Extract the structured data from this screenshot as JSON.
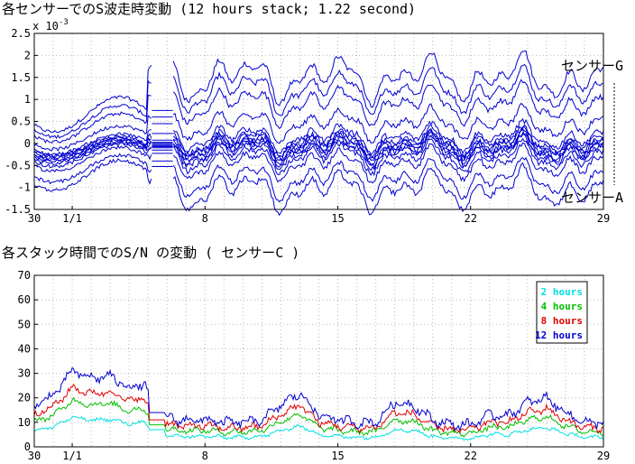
{
  "chart_data": [
    {
      "type": "line",
      "title": "各センサーでのS波走時変動 (12 hours stack; 1.22 second)",
      "y_exponent_label": "x 10",
      "y_exponent_power": "-3",
      "ylim": [
        -1.5,
        2.5
      ],
      "yticks": [
        -1.5,
        -1,
        -0.5,
        0,
        0.5,
        1,
        1.5,
        2,
        2.5
      ],
      "ytick_labels": [
        "-1.5",
        "-1",
        "-0.5",
        "0",
        "0.5",
        "1",
        "1.5",
        "2",
        "2.5"
      ],
      "xlim": [
        30,
        29
      ],
      "xticks": [
        {
          "day_offset": 0,
          "label": "30"
        },
        {
          "day_offset": 2,
          "label": "1/1"
        },
        {
          "day_offset": 9,
          "label": "8"
        },
        {
          "day_offset": 16,
          "label": "15"
        },
        {
          "day_offset": 23,
          "label": "22"
        },
        {
          "day_offset": 30,
          "label": "29"
        }
      ],
      "grid": true,
      "line_color": "#0000d0",
      "sensor_top_label": "センサーG",
      "sensor_bottom_label": "センサーA",
      "series_offsets": [
        1.5,
        1.2,
        0.9,
        0.45,
        0.15,
        0.05,
        0.0,
        -0.05,
        -0.1,
        -0.15,
        -0.2,
        -0.3,
        -0.45,
        -0.8,
        -1.05
      ],
      "data_gap_days": [
        6.2,
        7.3
      ]
    },
    {
      "type": "line",
      "title": "各スタック時間でのS/N の変動 ( センサーC )",
      "ylim": [
        0,
        70
      ],
      "yticks": [
        0,
        10,
        20,
        30,
        40,
        50,
        60,
        70
      ],
      "ytick_labels": [
        "0",
        "10",
        "20",
        "30",
        "40",
        "50",
        "60",
        "70"
      ],
      "xlim": [
        30,
        29
      ],
      "xticks": [
        {
          "day_offset": 0,
          "label": "30"
        },
        {
          "day_offset": 2,
          "label": "1/1"
        },
        {
          "day_offset": 9,
          "label": "8"
        },
        {
          "day_offset": 16,
          "label": "15"
        },
        {
          "day_offset": 23,
          "label": "22"
        },
        {
          "day_offset": 30,
          "label": "29"
        }
      ],
      "grid": true,
      "legend_position": "top-right",
      "series": [
        {
          "name": "2 hours",
          "color": "#00e0e0",
          "level": 7
        },
        {
          "name": "4 hours",
          "color": "#00c000",
          "level": 11
        },
        {
          "name": "8 hours",
          "color": "#e00000",
          "level": 14
        },
        {
          "name": "12 hours",
          "color": "#0000d0",
          "level": 18
        }
      ],
      "envelope_days": [
        0,
        1,
        2,
        3,
        4,
        5,
        5.8,
        6.3,
        7.5,
        9,
        10,
        11,
        12,
        13,
        14,
        15,
        16,
        17,
        18,
        19,
        20,
        21,
        22,
        23,
        24,
        25,
        26,
        27,
        28,
        29
      ],
      "envelope_12h": [
        17,
        21,
        31,
        28,
        29,
        24,
        26,
        14,
        11,
        11,
        10,
        10,
        11,
        17,
        22,
        13,
        11,
        10,
        10,
        18,
        17,
        11,
        9,
        9,
        13,
        13,
        18,
        20,
        14,
        10
      ]
    }
  ]
}
